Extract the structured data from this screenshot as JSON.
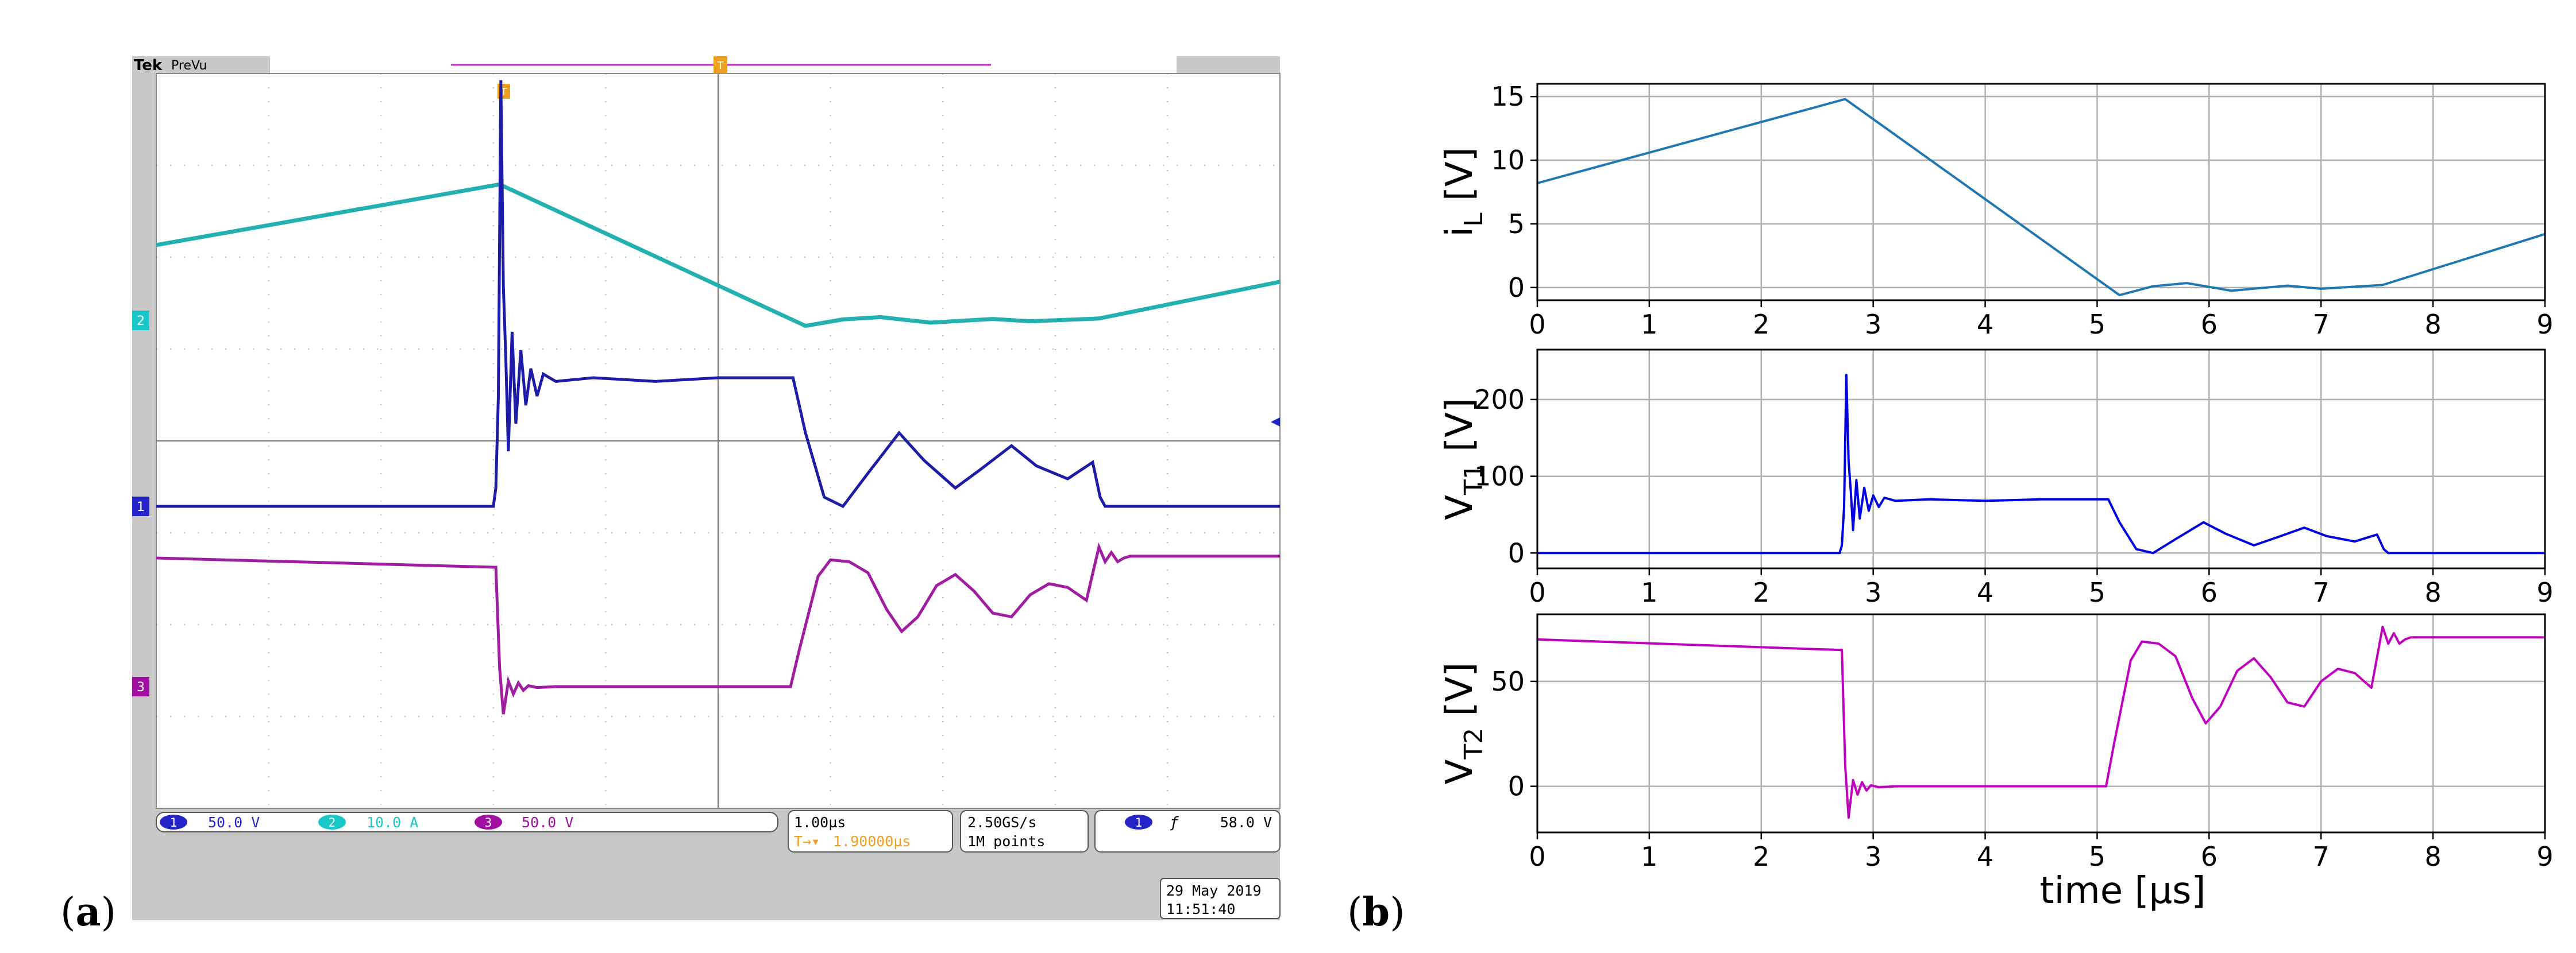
{
  "panel_labels": {
    "a": "(a)",
    "b": "(b)"
  },
  "scope": {
    "brand": "Tek",
    "mode": "PreVu",
    "ch_markers": [
      "1",
      "2",
      "3"
    ],
    "ch_readouts": [
      {
        "badge": "1",
        "value": "50.0 V",
        "color": "#2424c8"
      },
      {
        "badge": "2",
        "value": "10.0 A",
        "color": "#18c8c8"
      },
      {
        "badge": "3",
        "value": "50.0 V",
        "color": "#a010a0"
      }
    ],
    "timebase": "1.00µs",
    "trig_pos": "1.90000µs",
    "trig_pos_symbol": "T→▾",
    "sample_rate": "2.50GS/s",
    "record_length": "1M points",
    "trigger_badge": "1",
    "trigger_slope": "ƒ",
    "trigger_level": "58.0 V",
    "date": "29 May 2019",
    "time": "11:51:40",
    "trigger_flag": "T",
    "colors": {
      "ch1": "#1c1ca8",
      "ch2": "#22b0b0",
      "ch3": "#a01ca0",
      "trigger": "#f0a020",
      "frame": "#c8c8c8"
    }
  },
  "chart_data": [
    {
      "type": "line",
      "ylabel_main": "i",
      "ylabel_sub": "L",
      "ylabel_unit": " [V]",
      "xlim": [
        0,
        9
      ],
      "ylim": [
        -1,
        16
      ],
      "xticks": [
        "0",
        "1",
        "2",
        "3",
        "4",
        "5",
        "6",
        "7",
        "8",
        "9"
      ],
      "yticks": [
        0,
        5,
        10,
        15
      ],
      "color": "#1f77b4",
      "x": [
        0,
        2.75,
        5.2,
        5.5,
        5.8,
        6.2,
        6.7,
        7.0,
        7.55,
        9
      ],
      "y": [
        8.2,
        14.8,
        -0.6,
        0.1,
        0.35,
        -0.25,
        0.15,
        -0.1,
        0.2,
        4.2
      ]
    },
    {
      "type": "line",
      "ylabel_main": "V",
      "ylabel_sub": "T1",
      "ylabel_unit": " [V]",
      "xlim": [
        0,
        9
      ],
      "ylim": [
        -20,
        265
      ],
      "xticks": [
        "0",
        "1",
        "2",
        "3",
        "4",
        "5",
        "6",
        "7",
        "8",
        "9"
      ],
      "yticks": [
        0,
        100,
        200
      ],
      "color": "#0000e0",
      "x": [
        0,
        2.7,
        2.72,
        2.74,
        2.76,
        2.78,
        2.8,
        2.82,
        2.85,
        2.88,
        2.92,
        2.96,
        3.0,
        3.05,
        3.1,
        3.2,
        3.5,
        4.0,
        4.5,
        5.1,
        5.2,
        5.35,
        5.5,
        5.7,
        5.95,
        6.15,
        6.4,
        6.6,
        6.85,
        7.05,
        7.3,
        7.5,
        7.56,
        7.6,
        9
      ],
      "y": [
        0,
        0,
        10,
        60,
        232,
        120,
        80,
        30,
        95,
        45,
        85,
        55,
        75,
        60,
        72,
        68,
        70,
        68,
        70,
        70,
        40,
        5,
        0,
        18,
        40,
        25,
        10,
        20,
        33,
        22,
        15,
        24,
        5,
        0,
        0
      ]
    },
    {
      "type": "line",
      "ylabel_main": "V",
      "ylabel_sub": "T2",
      "ylabel_unit": " [V]",
      "xlabel": "time [µs]",
      "xlim": [
        0,
        9
      ],
      "ylim": [
        -22,
        82
      ],
      "xticks": [
        "0",
        "1",
        "2",
        "3",
        "4",
        "5",
        "6",
        "7",
        "8",
        "9"
      ],
      "yticks": [
        0,
        50
      ],
      "color": "#c000c0",
      "x": [
        0,
        2.7,
        2.72,
        2.75,
        2.78,
        2.82,
        2.86,
        2.9,
        2.94,
        2.98,
        3.05,
        3.2,
        4.0,
        5.08,
        5.15,
        5.3,
        5.4,
        5.55,
        5.7,
        5.85,
        5.97,
        6.1,
        6.25,
        6.4,
        6.55,
        6.7,
        6.85,
        7.0,
        7.15,
        7.3,
        7.45,
        7.55,
        7.6,
        7.65,
        7.7,
        7.75,
        7.8,
        7.9,
        9
      ],
      "y": [
        70,
        65,
        65,
        10,
        -15,
        3,
        -4,
        2,
        -2,
        0.5,
        -0.5,
        0,
        0,
        0,
        20,
        60,
        69,
        68,
        62,
        42,
        30,
        38,
        55,
        61,
        52,
        40,
        38,
        50,
        56,
        54,
        47,
        76,
        68,
        73,
        68,
        70,
        71,
        71,
        71
      ]
    }
  ]
}
